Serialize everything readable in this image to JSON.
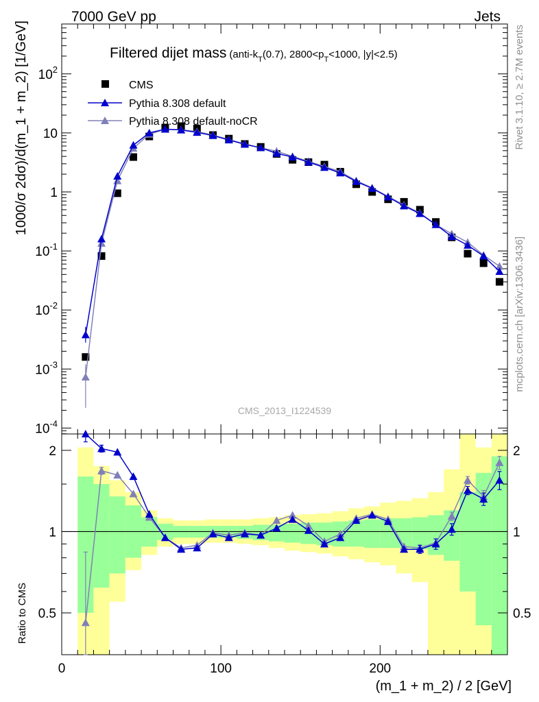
{
  "header": {
    "left": "7000 GeV pp",
    "right": "Jets"
  },
  "plot_title": {
    "main": "Filtered dijet mass",
    "sub_prefix": "(anti-k",
    "sub_sub1": "T",
    "sub_mid": "(0.7), 2800<p",
    "sub_sub2": "T",
    "sub_suffix": "<1000, |y|<2.5)"
  },
  "side_labels": {
    "rivet": "Rivet 3.1.10, ≥ 2.7M events",
    "mcplots": "mcplots.cern.ch [arXiv:1306.3436]"
  },
  "watermark": "CMS_2013_I1224539",
  "colors": {
    "cms": "#000000",
    "default": "#0000cc",
    "nocr": "#8080b8",
    "band_inner": "#99ff99",
    "band_outer": "#ffff99"
  },
  "chart_data": [
    {
      "type": "scatter",
      "panel": "main",
      "ylabel": "1000/σ 2dσ)/d(m_1 + m_2) [1/GeV]",
      "yscale": "log",
      "ylim": [
        0.0001,
        700
      ],
      "xlim": [
        0,
        280
      ],
      "yticks": [
        "10^-4",
        "10^-3",
        "10^-2",
        "10^-1",
        "1",
        "10",
        "10^2"
      ],
      "legend_position": "top-left",
      "x": [
        15,
        25,
        35,
        45,
        55,
        65,
        75,
        85,
        95,
        105,
        115,
        125,
        135,
        145,
        155,
        165,
        175,
        185,
        195,
        205,
        215,
        225,
        235,
        245,
        255,
        265,
        275
      ],
      "series": [
        {
          "name": "CMS",
          "marker": "square",
          "values": [
            0.0016,
            0.082,
            0.95,
            3.9,
            8.7,
            12.3,
            13.0,
            11.9,
            9.2,
            8.0,
            6.5,
            5.8,
            4.4,
            3.5,
            3.2,
            2.9,
            2.2,
            1.35,
            1.0,
            0.75,
            0.68,
            0.5,
            0.31,
            0.17,
            0.09,
            0.062,
            0.03
          ]
        },
        {
          "name": "Pythia 8.308 default",
          "marker": "triangle",
          "values": [
            0.0038,
            0.16,
            1.85,
            6.2,
            10.0,
            11.6,
            11.2,
            10.2,
            9.0,
            7.6,
            6.4,
            5.6,
            4.5,
            3.9,
            3.2,
            2.6,
            2.1,
            1.5,
            1.15,
            0.82,
            0.58,
            0.43,
            0.28,
            0.175,
            0.125,
            0.082,
            0.045
          ]
        },
        {
          "name": "Pythia 8.308 default-noCR",
          "marker": "triangle",
          "values": [
            0.00073,
            0.135,
            1.55,
            5.5,
            9.5,
            11.5,
            11.3,
            10.5,
            9.2,
            7.7,
            6.5,
            5.6,
            4.9,
            4.0,
            3.3,
            2.7,
            2.2,
            1.55,
            1.17,
            0.84,
            0.6,
            0.44,
            0.28,
            0.195,
            0.14,
            0.085,
            0.055
          ]
        }
      ]
    },
    {
      "type": "line",
      "panel": "ratio",
      "xlabel": "(m_1 + m_2) / 2 [GeV]",
      "ylabel": "Ratio to CMS",
      "ylim": [
        0.35,
        2.3
      ],
      "xlim": [
        0,
        280
      ],
      "xticks": [
        "0",
        "100",
        "200"
      ],
      "yticks": [
        "0.5",
        "1",
        "2"
      ],
      "reference_line": 1,
      "x": [
        15,
        25,
        35,
        45,
        55,
        65,
        75,
        85,
        95,
        105,
        115,
        125,
        135,
        145,
        155,
        165,
        175,
        185,
        195,
        205,
        215,
        225,
        235,
        245,
        255,
        265,
        275
      ],
      "bins": [
        [
          10,
          20
        ],
        [
          20,
          30
        ],
        [
          30,
          40
        ],
        [
          40,
          50
        ],
        [
          50,
          60
        ],
        [
          60,
          70
        ],
        [
          70,
          80
        ],
        [
          80,
          90
        ],
        [
          90,
          100
        ],
        [
          100,
          110
        ],
        [
          110,
          120
        ],
        [
          120,
          130
        ],
        [
          130,
          140
        ],
        [
          140,
          150
        ],
        [
          150,
          160
        ],
        [
          160,
          170
        ],
        [
          170,
          180
        ],
        [
          180,
          190
        ],
        [
          190,
          200
        ],
        [
          200,
          210
        ],
        [
          210,
          220
        ],
        [
          220,
          230
        ],
        [
          230,
          240
        ],
        [
          240,
          250
        ],
        [
          250,
          260
        ],
        [
          260,
          270
        ],
        [
          270,
          280
        ]
      ],
      "band_inner": {
        "low": [
          0.5,
          0.62,
          0.7,
          0.8,
          0.88,
          0.93,
          0.95,
          0.95,
          0.95,
          0.95,
          0.94,
          0.93,
          0.92,
          0.91,
          0.9,
          0.89,
          0.88,
          0.88,
          0.87,
          0.87,
          0.87,
          0.86,
          0.82,
          0.78,
          0.6,
          0.45,
          0.35
        ],
        "high": [
          1.6,
          1.5,
          1.35,
          1.25,
          1.13,
          1.07,
          1.05,
          1.05,
          1.05,
          1.05,
          1.05,
          1.06,
          1.06,
          1.07,
          1.08,
          1.08,
          1.09,
          1.1,
          1.11,
          1.12,
          1.12,
          1.13,
          1.15,
          1.2,
          1.4,
          1.65,
          1.9
        ]
      },
      "band_outer": {
        "low": [
          0.35,
          0.35,
          0.55,
          0.72,
          0.82,
          0.88,
          0.9,
          0.9,
          0.91,
          0.91,
          0.9,
          0.89,
          0.87,
          0.85,
          0.84,
          0.83,
          0.81,
          0.79,
          0.77,
          0.75,
          0.7,
          0.65,
          0.35,
          0.35,
          0.35,
          0.35,
          0.35
        ],
        "high": [
          2.05,
          1.75,
          1.55,
          1.4,
          1.2,
          1.12,
          1.1,
          1.1,
          1.11,
          1.11,
          1.11,
          1.12,
          1.13,
          1.15,
          1.16,
          1.17,
          1.19,
          1.22,
          1.24,
          1.28,
          1.3,
          1.33,
          1.4,
          1.7,
          2.3,
          2.05,
          2.3
        ]
      },
      "series": [
        {
          "name": "Pythia 8.308 default",
          "values": [
            2.3,
            2.03,
            1.97,
            1.6,
            1.16,
            0.95,
            0.86,
            0.87,
            0.98,
            0.95,
            0.98,
            0.97,
            1.03,
            1.11,
            1.01,
            0.9,
            0.95,
            1.1,
            1.15,
            1.09,
            0.86,
            0.86,
            0.9,
            1.02,
            1.42,
            1.32,
            1.55
          ],
          "errors": [
            0.15,
            0.06,
            0.0,
            0.0,
            0.0,
            0.0,
            0.0,
            0.0,
            0.0,
            0.0,
            0.0,
            0.0,
            0.0,
            0.0,
            0.0,
            0.0,
            0.0,
            0.0,
            0.0,
            0.0,
            0.0,
            0.03,
            0.04,
            0.05,
            0.05,
            0.07,
            0.12
          ]
        },
        {
          "name": "Pythia 8.308 default-noCR",
          "values": [
            0.46,
            1.68,
            1.62,
            1.38,
            1.13,
            0.95,
            0.87,
            0.89,
            0.99,
            0.97,
            0.99,
            0.97,
            1.1,
            1.15,
            1.05,
            0.92,
            0.98,
            1.12,
            1.16,
            1.11,
            0.88,
            0.87,
            0.91,
            1.14,
            1.55,
            1.35,
            1.8
          ],
          "errors": [
            0.38,
            0.05,
            0.0,
            0.0,
            0.0,
            0.0,
            0.0,
            0.0,
            0.0,
            0.0,
            0.0,
            0.0,
            0.0,
            0.0,
            0.0,
            0.0,
            0.0,
            0.0,
            0.0,
            0.0,
            0.0,
            0.02,
            0.03,
            0.04,
            0.05,
            0.07,
            0.1
          ]
        }
      ]
    }
  ]
}
